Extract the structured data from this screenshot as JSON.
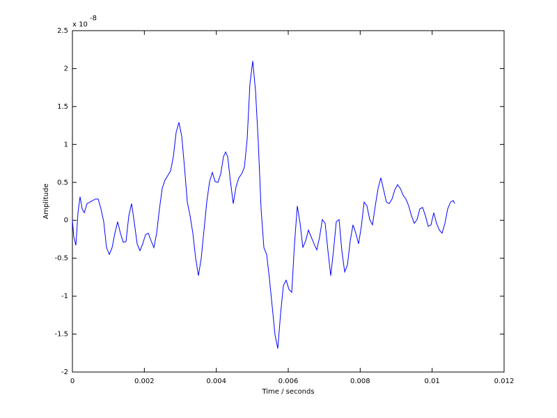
{
  "chart_data": {
    "type": "line",
    "x_label": "Time / seconds",
    "y_label": "Amplitude",
    "y_multiplier": {
      "base": "x 10",
      "exponent": "-8"
    },
    "xlim": [
      0,
      0.012
    ],
    "xticks": [
      0,
      0.002,
      0.004,
      0.006,
      0.008,
      0.01,
      0.012
    ],
    "ylim": [
      -2,
      2.5
    ],
    "yticks": [
      -2,
      -1.5,
      -1,
      -0.5,
      0,
      0.5,
      1,
      1.5,
      2,
      2.5
    ],
    "grid": false,
    "box": true,
    "series": [
      {
        "color": "#0000ff",
        "x": [
          0,
          3.9e-05,
          9.7e-05,
          0.000155,
          0.000213,
          0.000271,
          0.000329,
          0.000406,
          0.000484,
          0.000561,
          0.000639,
          0.000716,
          0.000794,
          0.000871,
          0.000948,
          0.001026,
          0.001103,
          0.001181,
          0.001258,
          0.001335,
          0.001413,
          0.00149,
          0.001568,
          0.001645,
          0.001723,
          0.0018,
          0.001877,
          0.001955,
          0.002032,
          0.00211,
          0.002187,
          0.002265,
          0.002342,
          0.002419,
          0.002497,
          0.002574,
          0.002652,
          0.002729,
          0.002806,
          0.002884,
          0.002961,
          0.003039,
          0.003116,
          0.003194,
          0.003271,
          0.003348,
          0.003426,
          0.003503,
          0.003581,
          0.003658,
          0.003735,
          0.003813,
          0.00389,
          0.003968,
          0.004045,
          0.004123,
          0.0042,
          0.004258,
          0.004316,
          0.004394,
          0.004471,
          0.004548,
          0.004626,
          0.004703,
          0.004781,
          0.004858,
          0.004935,
          0.005013,
          0.00509,
          0.005168,
          0.005245,
          0.005323,
          0.0054,
          0.005477,
          0.005555,
          0.005632,
          0.00571,
          0.005787,
          0.005865,
          0.005942,
          0.006019,
          0.006097,
          0.006174,
          0.006252,
          0.006329,
          0.006406,
          0.006484,
          0.006561,
          0.006639,
          0.006716,
          0.006794,
          0.006871,
          0.006948,
          0.007026,
          0.007103,
          0.007181,
          0.007258,
          0.007335,
          0.007413,
          0.00749,
          0.007568,
          0.007645,
          0.007723,
          0.0078,
          0.007877,
          0.007955,
          0.008032,
          0.00811,
          0.008187,
          0.008265,
          0.008342,
          0.008419,
          0.008497,
          0.008574,
          0.008652,
          0.008729,
          0.008806,
          0.008884,
          0.008961,
          0.009039,
          0.009116,
          0.009194,
          0.009271,
          0.009348,
          0.009426,
          0.009503,
          0.009581,
          0.009658,
          0.009735,
          0.009813,
          0.00989,
          0.009968,
          0.010045,
          0.010123,
          0.0102,
          0.010277,
          0.010355,
          0.010432,
          0.01051,
          0.010587,
          0.010626
        ],
        "values": [
          0,
          -0.22,
          -0.33,
          0.1,
          0.31,
          0.15,
          0.1,
          0.22,
          0.24,
          0.26,
          0.28,
          0.28,
          0.15,
          -0.02,
          -0.36,
          -0.45,
          -0.36,
          -0.17,
          -0.02,
          -0.17,
          -0.29,
          -0.28,
          0.06,
          0.22,
          -0.04,
          -0.31,
          -0.4,
          -0.31,
          -0.19,
          -0.17,
          -0.27,
          -0.36,
          -0.17,
          0.15,
          0.42,
          0.53,
          0.59,
          0.65,
          0.84,
          1.16,
          1.29,
          1.11,
          0.7,
          0.24,
          0.06,
          -0.17,
          -0.5,
          -0.73,
          -0.5,
          -0.13,
          0.24,
          0.51,
          0.63,
          0.51,
          0.5,
          0.61,
          0.84,
          0.9,
          0.84,
          0.51,
          0.22,
          0.44,
          0.56,
          0.61,
          0.7,
          1.07,
          1.8,
          2.1,
          1.71,
          1.02,
          0.15,
          -0.36,
          -0.45,
          -0.77,
          -1.14,
          -1.51,
          -1.69,
          -1.23,
          -0.86,
          -0.79,
          -0.91,
          -0.95,
          -0.31,
          0.19,
          -0.04,
          -0.36,
          -0.27,
          -0.13,
          -0.22,
          -0.31,
          -0.39,
          -0.22,
          0.01,
          -0.04,
          -0.4,
          -0.73,
          -0.4,
          -0.02,
          0.01,
          -0.4,
          -0.68,
          -0.59,
          -0.27,
          -0.06,
          -0.17,
          -0.31,
          -0.08,
          0.24,
          0.19,
          0.01,
          -0.06,
          0.19,
          0.42,
          0.56,
          0.4,
          0.24,
          0.22,
          0.28,
          0.4,
          0.47,
          0.42,
          0.33,
          0.28,
          0.19,
          0.06,
          -0.04,
          0.01,
          0.15,
          0.17,
          0.06,
          -0.08,
          -0.06,
          0.1,
          -0.04,
          -0.13,
          -0.17,
          -0.04,
          0.15,
          0.24,
          0.26,
          0.22
        ]
      }
    ]
  }
}
